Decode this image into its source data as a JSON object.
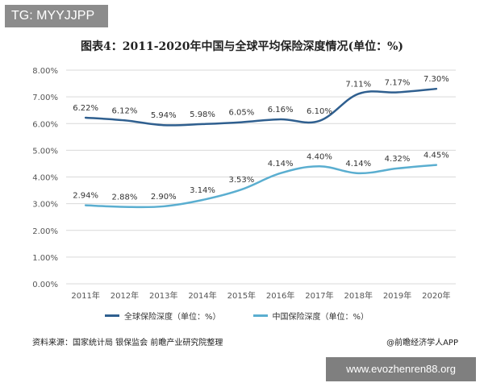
{
  "watermark_top": "TG: MYYJJPP",
  "watermark_bottom": "www.evozhenren88.org",
  "source": "资料来源：国家统计局 银保监会 前瞻产业研究院整理",
  "credit": "@前瞻经济学人APP",
  "colors": {
    "global": "#2f5f8f",
    "china": "#5aaed0",
    "grid": "#d9d9d9"
  },
  "chart_data": {
    "type": "line",
    "title": "图表4：2011-2020年中国与全球平均保险深度情况(单位：%)",
    "categories": [
      "2011年",
      "2012年",
      "2013年",
      "2014年",
      "2015年",
      "2016年",
      "2017年",
      "2018年",
      "2019年",
      "2020年"
    ],
    "ylim": [
      0,
      8
    ],
    "yticks": [
      "0.00%",
      "1.00%",
      "2.00%",
      "3.00%",
      "4.00%",
      "5.00%",
      "6.00%",
      "7.00%",
      "8.00%"
    ],
    "legend_position": "bottom",
    "series": [
      {
        "name": "全球保险深度（单位：%）",
        "values": [
          6.22,
          6.12,
          5.94,
          5.98,
          6.05,
          6.16,
          6.1,
          7.11,
          7.17,
          7.3
        ],
        "labels": [
          "6.22%",
          "6.12%",
          "5.94%",
          "5.98%",
          "6.05%",
          "6.16%",
          "6.10%",
          "7.11%",
          "7.17%",
          "7.30%"
        ]
      },
      {
        "name": "中国保险深度（单位：%）",
        "values": [
          2.94,
          2.88,
          2.9,
          3.14,
          3.53,
          4.14,
          4.4,
          4.14,
          4.32,
          4.45
        ],
        "labels": [
          "2.94%",
          "2.88%",
          "2.90%",
          "3.14%",
          "3.53%",
          "4.14%",
          "4.40%",
          "4.14%",
          "4.32%",
          "4.45%"
        ]
      }
    ]
  }
}
